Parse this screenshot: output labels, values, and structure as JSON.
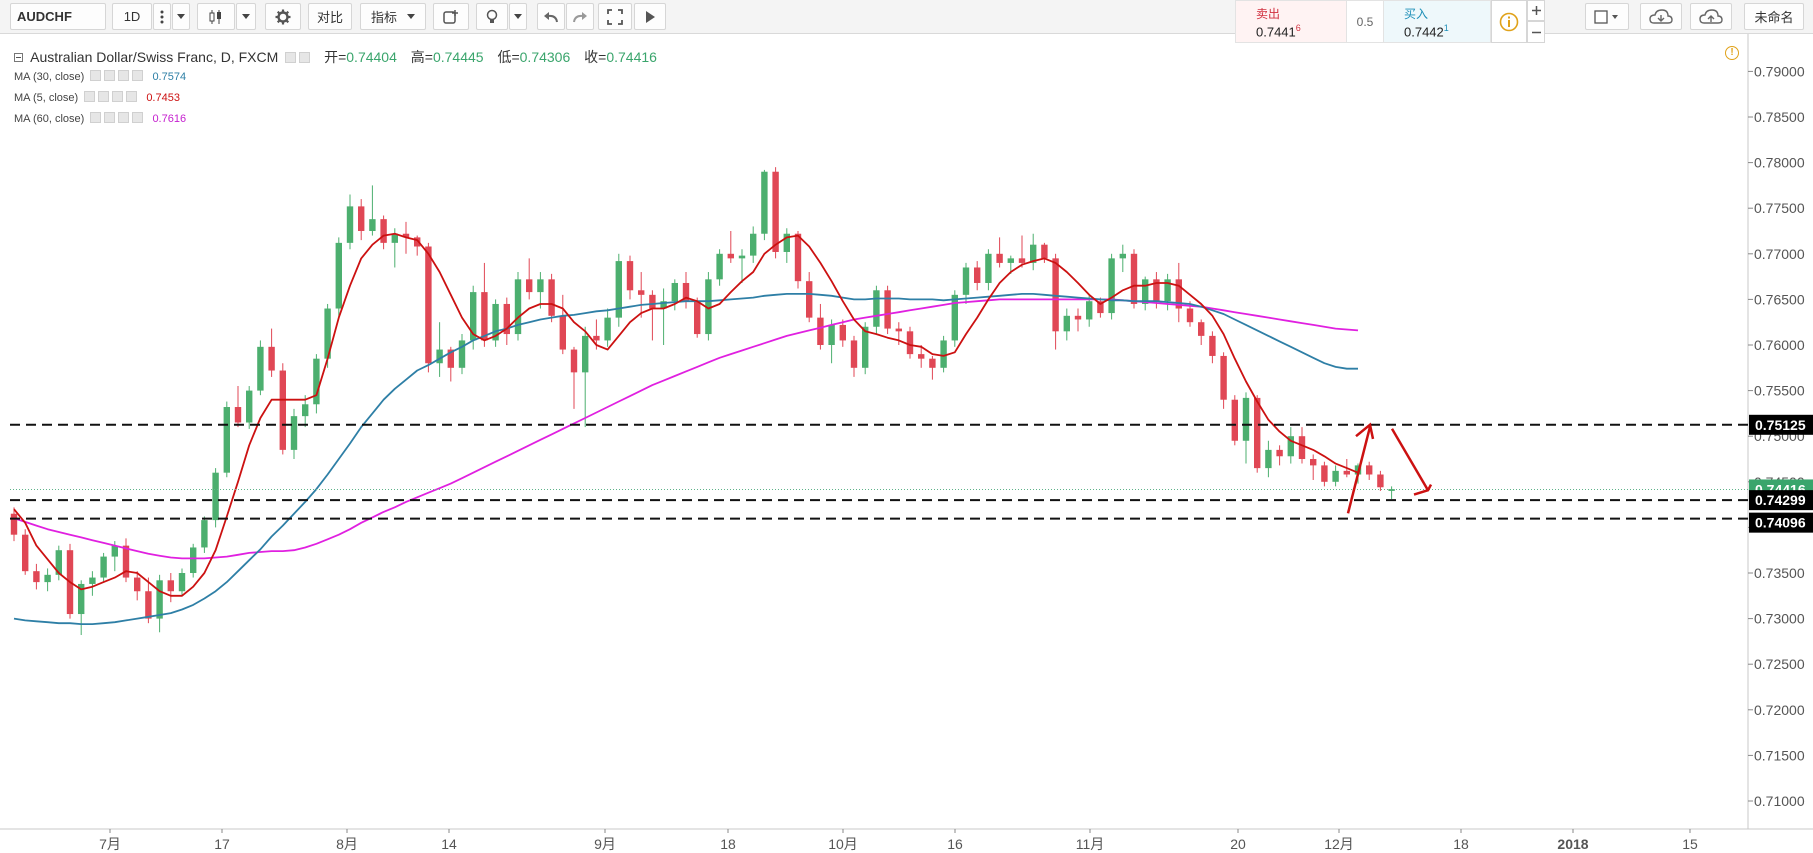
{
  "toolbar": {
    "symbol": "AUDCHF",
    "interval": "1D",
    "compare_label": "对比",
    "indicators_label": "指标",
    "layout_name": "未命名",
    "sell_label": "卖出",
    "sell_price": "0.7441",
    "sell_price_sup": "6",
    "spread": "0.5",
    "buy_label": "买入",
    "buy_price": "0.7442",
    "buy_price_sup": "1",
    "icons": [
      "menu-dots-icon",
      "dropdown-icon",
      "candles-icon",
      "gear-icon",
      "alert-icon",
      "bulb-icon",
      "undo-icon",
      "redo-icon",
      "fullscreen-icon",
      "play-icon",
      "info-icon",
      "plus-icon",
      "minus-icon",
      "square-icon",
      "cloud-icon",
      "cloud-upload-icon"
    ]
  },
  "legend": {
    "title": "Australian Dollar/Swiss Franc, D, FXCM",
    "open_label": "开=",
    "open_value": "0.74404",
    "high_label": "高=",
    "high_value": "0.74445",
    "low_label": "低=",
    "low_value": "0.74306",
    "close_label": "收=",
    "close_value": "0.74416",
    "indicators": [
      {
        "label": "MA (30, close)",
        "value": "0.7574",
        "color": "#2e7fa6"
      },
      {
        "label": "MA (5, close)",
        "value": "0.7453",
        "color": "#cc1111"
      },
      {
        "label": "MA (60, close)",
        "value": "0.7616",
        "color": "#c51fcf"
      }
    ]
  },
  "chart_data": {
    "type": "candlestick",
    "symbol": "AUDCHF",
    "ylim": [
      0.705,
      0.793
    ],
    "y_ticks": [
      "0.79000",
      "0.78500",
      "0.78000",
      "0.77500",
      "0.77000",
      "0.76500",
      "0.76000",
      "0.75500",
      "0.75000",
      "0.74500",
      "0.74000",
      "0.73500",
      "0.73000",
      "0.72500",
      "0.72000",
      "0.71500",
      "0.71000"
    ],
    "x_ticks": [
      "7月",
      "17",
      "8月",
      "14",
      "9月",
      "18",
      "10月",
      "16",
      "11月",
      "20",
      "12月",
      "18",
      "2018",
      "15"
    ],
    "price_labels": [
      {
        "text": "0.75125",
        "value": 0.75125,
        "color": "#000000"
      },
      {
        "text": "0.74416",
        "value": 0.74416,
        "color": "#3aa56c"
      },
      {
        "text": "0.74299",
        "value": 0.74299,
        "color": "#000000"
      },
      {
        "text": "0.74096",
        "value": 0.74096,
        "color": "#000000"
      }
    ],
    "horizontal_levels": [
      0.75125,
      0.74299,
      0.74096
    ],
    "colors": {
      "up": "#4caf6f",
      "down": "#e04755",
      "ma5": "#cc1111",
      "ma30": "#2e7fa6",
      "ma60": "#e020e0",
      "arrow": "#cc1111"
    },
    "candles": [
      [
        0.7415,
        0.7422,
        0.7385,
        0.7392
      ],
      [
        0.7392,
        0.7398,
        0.7348,
        0.7352
      ],
      [
        0.7352,
        0.736,
        0.7332,
        0.734
      ],
      [
        0.734,
        0.7355,
        0.733,
        0.7348
      ],
      [
        0.7348,
        0.738,
        0.7342,
        0.7375
      ],
      [
        0.7375,
        0.7382,
        0.73,
        0.7305
      ],
      [
        0.7305,
        0.7342,
        0.7282,
        0.7338
      ],
      [
        0.7338,
        0.7352,
        0.7325,
        0.7345
      ],
      [
        0.7345,
        0.7372,
        0.734,
        0.7368
      ],
      [
        0.7368,
        0.7385,
        0.7352,
        0.738
      ],
      [
        0.738,
        0.7388,
        0.734,
        0.7345
      ],
      [
        0.7345,
        0.7352,
        0.732,
        0.733
      ],
      [
        0.733,
        0.7345,
        0.7295,
        0.73
      ],
      [
        0.73,
        0.7348,
        0.7285,
        0.7342
      ],
      [
        0.7342,
        0.735,
        0.7318,
        0.733
      ],
      [
        0.733,
        0.7355,
        0.7325,
        0.735
      ],
      [
        0.735,
        0.7382,
        0.7345,
        0.7378
      ],
      [
        0.7378,
        0.7412,
        0.7372,
        0.7408
      ],
      [
        0.7408,
        0.7465,
        0.74,
        0.746
      ],
      [
        0.746,
        0.7538,
        0.7455,
        0.7532
      ],
      [
        0.7532,
        0.7555,
        0.751,
        0.7515
      ],
      [
        0.7515,
        0.7555,
        0.7508,
        0.755
      ],
      [
        0.755,
        0.7605,
        0.7545,
        0.7598
      ],
      [
        0.7598,
        0.7618,
        0.7565,
        0.7572
      ],
      [
        0.7572,
        0.758,
        0.748,
        0.7485
      ],
      [
        0.7485,
        0.753,
        0.7475,
        0.7522
      ],
      [
        0.7522,
        0.7545,
        0.751,
        0.7535
      ],
      [
        0.7535,
        0.759,
        0.7525,
        0.7585
      ],
      [
        0.7585,
        0.7645,
        0.7575,
        0.764
      ],
      [
        0.764,
        0.7718,
        0.763,
        0.7712
      ],
      [
        0.7712,
        0.7765,
        0.7705,
        0.7752
      ],
      [
        0.7752,
        0.776,
        0.7715,
        0.7725
      ],
      [
        0.7725,
        0.7775,
        0.772,
        0.7738
      ],
      [
        0.7738,
        0.7742,
        0.7705,
        0.7712
      ],
      [
        0.7712,
        0.7728,
        0.7685,
        0.7722
      ],
      [
        0.7722,
        0.7735,
        0.77,
        0.7718
      ],
      [
        0.7718,
        0.772,
        0.7698,
        0.7708
      ],
      [
        0.7708,
        0.7712,
        0.757,
        0.758
      ],
      [
        0.758,
        0.7625,
        0.7565,
        0.7595
      ],
      [
        0.7595,
        0.7598,
        0.756,
        0.7575
      ],
      [
        0.7575,
        0.7612,
        0.7568,
        0.7605
      ],
      [
        0.7605,
        0.7665,
        0.7595,
        0.7658
      ],
      [
        0.7658,
        0.769,
        0.7598,
        0.7605
      ],
      [
        0.7605,
        0.765,
        0.7598,
        0.7645
      ],
      [
        0.7645,
        0.7652,
        0.76,
        0.7612
      ],
      [
        0.7612,
        0.768,
        0.7605,
        0.7672
      ],
      [
        0.7672,
        0.7695,
        0.765,
        0.7658
      ],
      [
        0.7658,
        0.768,
        0.764,
        0.7672
      ],
      [
        0.7672,
        0.7678,
        0.7625,
        0.7632
      ],
      [
        0.7632,
        0.7655,
        0.759,
        0.7595
      ],
      [
        0.7595,
        0.7598,
        0.753,
        0.757
      ],
      [
        0.757,
        0.762,
        0.751,
        0.761
      ],
      [
        0.761,
        0.7628,
        0.7595,
        0.7605
      ],
      [
        0.7605,
        0.764,
        0.7598,
        0.763
      ],
      [
        0.763,
        0.77,
        0.762,
        0.7692
      ],
      [
        0.7692,
        0.7698,
        0.765,
        0.766
      ],
      [
        0.766,
        0.768,
        0.763,
        0.7655
      ],
      [
        0.7655,
        0.766,
        0.7605,
        0.764
      ],
      [
        0.764,
        0.7662,
        0.76,
        0.7648
      ],
      [
        0.7648,
        0.7672,
        0.7638,
        0.7668
      ],
      [
        0.7668,
        0.768,
        0.764,
        0.7648
      ],
      [
        0.7648,
        0.7652,
        0.7608,
        0.7612
      ],
      [
        0.7612,
        0.768,
        0.7605,
        0.7672
      ],
      [
        0.7672,
        0.7705,
        0.7665,
        0.77
      ],
      [
        0.77,
        0.7725,
        0.769,
        0.7695
      ],
      [
        0.7695,
        0.7705,
        0.7668,
        0.7698
      ],
      [
        0.7698,
        0.773,
        0.769,
        0.7722
      ],
      [
        0.7722,
        0.7792,
        0.7715,
        0.779
      ],
      [
        0.779,
        0.7795,
        0.7695,
        0.7702
      ],
      [
        0.7702,
        0.7728,
        0.769,
        0.7722
      ],
      [
        0.7722,
        0.7725,
        0.7662,
        0.767
      ],
      [
        0.767,
        0.768,
        0.7625,
        0.763
      ],
      [
        0.763,
        0.7645,
        0.7595,
        0.76
      ],
      [
        0.76,
        0.7628,
        0.758,
        0.7622
      ],
      [
        0.7622,
        0.7628,
        0.7598,
        0.7605
      ],
      [
        0.7605,
        0.761,
        0.7565,
        0.7575
      ],
      [
        0.7575,
        0.7625,
        0.7568,
        0.762
      ],
      [
        0.762,
        0.7665,
        0.7612,
        0.766
      ],
      [
        0.766,
        0.7665,
        0.7612,
        0.7618
      ],
      [
        0.7618,
        0.7625,
        0.76,
        0.7615
      ],
      [
        0.7615,
        0.762,
        0.7585,
        0.759
      ],
      [
        0.759,
        0.76,
        0.7575,
        0.7585
      ],
      [
        0.7585,
        0.7588,
        0.7562,
        0.7575
      ],
      [
        0.7575,
        0.761,
        0.757,
        0.7605
      ],
      [
        0.7605,
        0.766,
        0.7598,
        0.7655
      ],
      [
        0.7655,
        0.769,
        0.7645,
        0.7685
      ],
      [
        0.7685,
        0.7692,
        0.766,
        0.7668
      ],
      [
        0.7668,
        0.7705,
        0.766,
        0.77
      ],
      [
        0.77,
        0.7718,
        0.7685,
        0.769
      ],
      [
        0.769,
        0.7698,
        0.7678,
        0.7695
      ],
      [
        0.7695,
        0.772,
        0.7685,
        0.769
      ],
      [
        0.769,
        0.7722,
        0.7682,
        0.771
      ],
      [
        0.771,
        0.7712,
        0.769,
        0.7695
      ],
      [
        0.7695,
        0.77,
        0.7595,
        0.7615
      ],
      [
        0.7615,
        0.764,
        0.7605,
        0.7632
      ],
      [
        0.7632,
        0.764,
        0.7615,
        0.7628
      ],
      [
        0.7628,
        0.7655,
        0.762,
        0.7648
      ],
      [
        0.7648,
        0.7652,
        0.763,
        0.7635
      ],
      [
        0.7635,
        0.77,
        0.7628,
        0.7695
      ],
      [
        0.7695,
        0.771,
        0.768,
        0.77
      ],
      [
        0.77,
        0.7705,
        0.764,
        0.7645
      ],
      [
        0.7645,
        0.7675,
        0.7638,
        0.7672
      ],
      [
        0.7672,
        0.768,
        0.764,
        0.7648
      ],
      [
        0.7648,
        0.7678,
        0.7638,
        0.7672
      ],
      [
        0.7672,
        0.769,
        0.7625,
        0.764
      ],
      [
        0.764,
        0.7648,
        0.762,
        0.7625
      ],
      [
        0.7625,
        0.7628,
        0.76,
        0.761
      ],
      [
        0.761,
        0.7615,
        0.758,
        0.7588
      ],
      [
        0.7588,
        0.7592,
        0.753,
        0.754
      ],
      [
        0.754,
        0.7545,
        0.749,
        0.7495
      ],
      [
        0.7495,
        0.7548,
        0.747,
        0.7542
      ],
      [
        0.7542,
        0.7545,
        0.746,
        0.7465
      ],
      [
        0.7465,
        0.7495,
        0.7455,
        0.7485
      ],
      [
        0.7485,
        0.749,
        0.7468,
        0.7478
      ],
      [
        0.7478,
        0.751,
        0.747,
        0.75
      ],
      [
        0.75,
        0.751,
        0.747,
        0.7475
      ],
      [
        0.7475,
        0.748,
        0.7452,
        0.7468
      ],
      [
        0.7468,
        0.7472,
        0.7445,
        0.745
      ],
      [
        0.745,
        0.7468,
        0.7445,
        0.7462
      ],
      [
        0.7462,
        0.7475,
        0.7455,
        0.7458
      ],
      [
        0.7458,
        0.747,
        0.7448,
        0.7468
      ],
      [
        0.7468,
        0.7472,
        0.7452,
        0.7458
      ],
      [
        0.7458,
        0.7462,
        0.744,
        0.7444
      ],
      [
        0.744,
        0.7445,
        0.7431,
        0.7442
      ]
    ],
    "ma5": [
      0.742,
      0.7405,
      0.738,
      0.7365,
      0.735,
      0.734,
      0.7332,
      0.7335,
      0.734,
      0.7345,
      0.7352,
      0.735,
      0.734,
      0.733,
      0.7325,
      0.7325,
      0.7335,
      0.735,
      0.7375,
      0.7412,
      0.745,
      0.749,
      0.752,
      0.754,
      0.754,
      0.754,
      0.754,
      0.7545,
      0.7585,
      0.763,
      0.7665,
      0.7695,
      0.771,
      0.772,
      0.7722,
      0.7718,
      0.7715,
      0.77,
      0.768,
      0.7655,
      0.763,
      0.7612,
      0.7605,
      0.761,
      0.7618,
      0.763,
      0.764,
      0.7645,
      0.7645,
      0.764,
      0.7625,
      0.7615,
      0.76,
      0.7595,
      0.761,
      0.7625,
      0.7635,
      0.764,
      0.764,
      0.7645,
      0.7652,
      0.7648,
      0.764,
      0.7645,
      0.7658,
      0.767,
      0.768,
      0.77,
      0.771,
      0.7718,
      0.772,
      0.7708,
      0.769,
      0.767,
      0.7648,
      0.7628,
      0.7615,
      0.7612,
      0.7608,
      0.7605,
      0.76,
      0.7598,
      0.759,
      0.7588,
      0.7592,
      0.7612,
      0.763,
      0.765,
      0.7668,
      0.768,
      0.7688,
      0.7692,
      0.7695,
      0.769,
      0.768,
      0.7668,
      0.7655,
      0.7645,
      0.7652,
      0.766,
      0.7665,
      0.7665,
      0.7668,
      0.7668,
      0.7665,
      0.7655,
      0.7645,
      0.7632,
      0.7612,
      0.7585,
      0.756,
      0.7538,
      0.7518,
      0.7505,
      0.7495,
      0.749,
      0.7485,
      0.7478,
      0.747,
      0.7465,
      0.746,
      0.7455,
      0.7452,
      0.745
    ],
    "ma30": [
      0.73,
      0.7298,
      0.7297,
      0.7296,
      0.7295,
      0.7295,
      0.7294,
      0.7294,
      0.7295,
      0.7296,
      0.7298,
      0.73,
      0.7302,
      0.7304,
      0.7306,
      0.731,
      0.7315,
      0.7322,
      0.733,
      0.734,
      0.7352,
      0.7364,
      0.7376,
      0.739,
      0.7402,
      0.7415,
      0.7428,
      0.7442,
      0.7458,
      0.7475,
      0.7492,
      0.751,
      0.7525,
      0.754,
      0.7552,
      0.7562,
      0.7572,
      0.7578,
      0.7585,
      0.7592,
      0.7598,
      0.7605,
      0.761,
      0.7615,
      0.7618,
      0.7622,
      0.7625,
      0.7628,
      0.763,
      0.7632,
      0.7633,
      0.7635,
      0.7637,
      0.7638,
      0.764,
      0.7642,
      0.7644,
      0.7645,
      0.7646,
      0.7647,
      0.7648,
      0.7648,
      0.7648,
      0.7649,
      0.765,
      0.7651,
      0.7652,
      0.7654,
      0.7655,
      0.7656,
      0.7656,
      0.7656,
      0.7655,
      0.7654,
      0.7652,
      0.765,
      0.765,
      0.7651,
      0.7651,
      0.7651,
      0.765,
      0.765,
      0.765,
      0.7649,
      0.765,
      0.7651,
      0.7652,
      0.7653,
      0.7654,
      0.7655,
      0.7656,
      0.7656,
      0.7655,
      0.7654,
      0.7653,
      0.7652,
      0.7651,
      0.765,
      0.7649,
      0.7649,
      0.7648,
      0.7648,
      0.7648,
      0.7647,
      0.7646,
      0.7645,
      0.7642,
      0.7638,
      0.7634,
      0.7628,
      0.7622,
      0.7616,
      0.761,
      0.7604,
      0.7598,
      0.7592,
      0.7586,
      0.758,
      0.7576,
      0.7574,
      0.7574,
      0.7574,
      0.7574,
      0.7574
    ],
    "ma60": [
      0.741,
      0.7406,
      0.7402,
      0.7398,
      0.7395,
      0.7392,
      0.7389,
      0.7386,
      0.7383,
      0.738,
      0.7377,
      0.7374,
      0.7371,
      0.7369,
      0.7367,
      0.7366,
      0.7366,
      0.7366,
      0.7367,
      0.7368,
      0.737,
      0.7372,
      0.7373,
      0.7374,
      0.7374,
      0.7375,
      0.7378,
      0.7382,
      0.7387,
      0.7392,
      0.7398,
      0.7405,
      0.7411,
      0.7417,
      0.7422,
      0.7428,
      0.7433,
      0.7438,
      0.7443,
      0.7448,
      0.7454,
      0.746,
      0.7466,
      0.7472,
      0.7478,
      0.7484,
      0.749,
      0.7496,
      0.7502,
      0.7508,
      0.7514,
      0.752,
      0.7526,
      0.7532,
      0.7538,
      0.7544,
      0.755,
      0.7556,
      0.7561,
      0.7566,
      0.7571,
      0.7576,
      0.7581,
      0.7586,
      0.759,
      0.7594,
      0.7598,
      0.7602,
      0.7606,
      0.761,
      0.7613,
      0.7616,
      0.7619,
      0.7622,
      0.7625,
      0.7628,
      0.763,
      0.7632,
      0.7634,
      0.7636,
      0.7638,
      0.764,
      0.7642,
      0.7644,
      0.7646,
      0.7647,
      0.7648,
      0.7649,
      0.765,
      0.765,
      0.765,
      0.765,
      0.765,
      0.765,
      0.765,
      0.765,
      0.765,
      0.765,
      0.765,
      0.7649,
      0.7648,
      0.7647,
      0.7646,
      0.7645,
      0.7644,
      0.7643,
      0.7642,
      0.764,
      0.7638,
      0.7636,
      0.7634,
      0.7632,
      0.763,
      0.7628,
      0.7626,
      0.7624,
      0.7622,
      0.762,
      0.7618,
      0.7617,
      0.7616,
      0.7616,
      0.7616,
      0.7616
    ],
    "ma_visible_to_index": 120,
    "ma_end_values": {
      "ma5": 0.7453,
      "ma30": 0.7574,
      "ma60": 0.7616
    }
  }
}
